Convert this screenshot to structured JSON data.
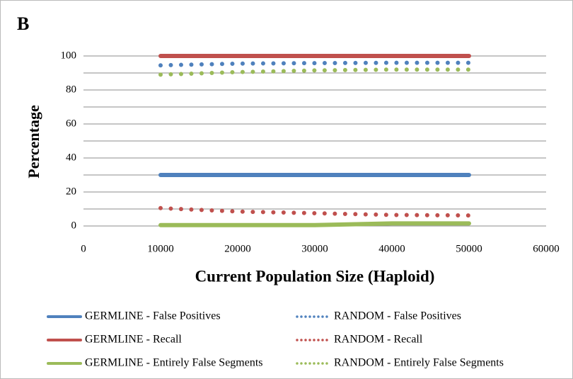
{
  "chart_data": {
    "type": "line",
    "panel_label": "B",
    "x_label": "Current Population Size (Haploid)",
    "y_label": "Percentage",
    "x": [
      10000,
      20000,
      30000,
      40000,
      50000
    ],
    "xlim": [
      0,
      60000
    ],
    "xticks": [
      0,
      10000,
      20000,
      30000,
      40000,
      50000,
      60000
    ],
    "ylim": [
      0,
      100
    ],
    "yticks": [
      0,
      20,
      40,
      60,
      80,
      100
    ],
    "ygrid_minor": [
      10,
      30,
      50,
      70,
      90
    ],
    "grid": true,
    "legend": "bottom",
    "series": [
      {
        "name": "GERMLINE - False Positives",
        "color": "#4f81bd",
        "line_style": "solid",
        "values": [
          30,
          30,
          30,
          30,
          30
        ]
      },
      {
        "name": "GERMLINE - Recall",
        "color": "#c0504d",
        "line_style": "solid",
        "values": [
          100,
          100,
          100,
          100,
          100
        ]
      },
      {
        "name": "GERMLINE - Entirely False Segments",
        "color": "#9bbb59",
        "line_style": "solid",
        "values": [
          0.5,
          0.5,
          0.5,
          1.5,
          1.5
        ]
      },
      {
        "name": "RANDOM - False Positives",
        "color": "#4f81bd",
        "line_style": "dotted",
        "values": [
          94.5,
          95.5,
          95.8,
          96,
          96
        ]
      },
      {
        "name": "RANDOM - Recall",
        "color": "#c0504d",
        "line_style": "dotted",
        "values": [
          10.5,
          8.5,
          7.5,
          6.5,
          6.2
        ]
      },
      {
        "name": "RANDOM - Entirely False Segments",
        "color": "#9bbb59",
        "line_style": "dotted",
        "values": [
          89,
          90.5,
          91.5,
          92,
          92
        ]
      }
    ]
  }
}
